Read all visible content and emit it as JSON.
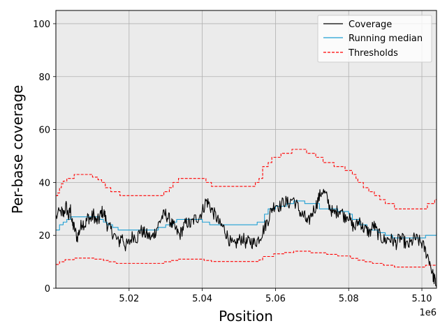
{
  "chart_data": {
    "type": "line",
    "xlabel": "Position",
    "ylabel": "Per-base coverage",
    "x_offset_label": "1e6",
    "xlim": [
      5.0,
      5.104
    ],
    "ylim": [
      0,
      105
    ],
    "x_ticks": [
      5.02,
      5.04,
      5.06,
      5.08,
      5.1
    ],
    "x_tick_labels": [
      "5.02",
      "5.04",
      "5.06",
      "5.08",
      "5.10"
    ],
    "y_ticks": [
      0,
      20,
      40,
      60,
      80,
      100
    ],
    "y_tick_labels": [
      "0",
      "20",
      "40",
      "60",
      "80",
      "100"
    ],
    "grid": true,
    "legend_position": "top-right",
    "colors": {
      "background": "#ebebeb",
      "grid": "#b0b0b0",
      "coverage": "#000000",
      "median": "#1f9fd4",
      "thresholds": "#ff0000"
    },
    "series": [
      {
        "name": "Coverage",
        "style": "solid",
        "color": "#000000",
        "points": [
          [
            5.0,
            27
          ],
          [
            5.0015,
            29
          ],
          [
            5.002,
            28
          ],
          [
            5.0028,
            31
          ],
          [
            5.0035,
            27
          ],
          [
            5.004,
            30
          ],
          [
            5.0045,
            24
          ],
          [
            5.005,
            23
          ],
          [
            5.0058,
            19
          ],
          [
            5.0065,
            22
          ],
          [
            5.0072,
            25
          ],
          [
            5.008,
            24
          ],
          [
            5.0088,
            27
          ],
          [
            5.0095,
            26
          ],
          [
            5.0103,
            28
          ],
          [
            5.011,
            25
          ],
          [
            5.0118,
            26
          ],
          [
            5.0125,
            29
          ],
          [
            5.0133,
            28
          ],
          [
            5.014,
            24
          ],
          [
            5.015,
            22
          ],
          [
            5.016,
            20
          ],
          [
            5.0172,
            17
          ],
          [
            5.018,
            20
          ],
          [
            5.019,
            16
          ],
          [
            5.02,
            17
          ],
          [
            5.021,
            20
          ],
          [
            5.0222,
            19
          ],
          [
            5.023,
            22
          ],
          [
            5.024,
            21
          ],
          [
            5.025,
            20
          ],
          [
            5.0262,
            19
          ],
          [
            5.027,
            21
          ],
          [
            5.028,
            24
          ],
          [
            5.029,
            27
          ],
          [
            5.03,
            28
          ],
          [
            5.031,
            26
          ],
          [
            5.0318,
            24
          ],
          [
            5.0328,
            22
          ],
          [
            5.0338,
            20
          ],
          [
            5.0348,
            23
          ],
          [
            5.0358,
            25
          ],
          [
            5.0368,
            24
          ],
          [
            5.0378,
            26
          ],
          [
            5.039,
            27
          ],
          [
            5.04,
            29
          ],
          [
            5.041,
            33
          ],
          [
            5.0418,
            32
          ],
          [
            5.0428,
            29
          ],
          [
            5.0438,
            27
          ],
          [
            5.0448,
            24
          ],
          [
            5.0458,
            23
          ],
          [
            5.0468,
            20
          ],
          [
            5.0478,
            17
          ],
          [
            5.0488,
            16
          ],
          [
            5.0498,
            18
          ],
          [
            5.051,
            19
          ],
          [
            5.052,
            17
          ],
          [
            5.053,
            18
          ],
          [
            5.054,
            17
          ],
          [
            5.055,
            18
          ],
          [
            5.056,
            20
          ],
          [
            5.057,
            23
          ],
          [
            5.058,
            26
          ],
          [
            5.059,
            30
          ],
          [
            5.06,
            32
          ],
          [
            5.0612,
            31
          ],
          [
            5.0625,
            33
          ],
          [
            5.0635,
            32
          ],
          [
            5.0648,
            34
          ],
          [
            5.066,
            31
          ],
          [
            5.067,
            28
          ],
          [
            5.068,
            27
          ],
          [
            5.0688,
            24
          ],
          [
            5.0698,
            28
          ],
          [
            5.071,
            31
          ],
          [
            5.0718,
            34
          ],
          [
            5.0728,
            37
          ],
          [
            5.0738,
            35
          ],
          [
            5.0748,
            31
          ],
          [
            5.0758,
            28
          ],
          [
            5.0768,
            29
          ],
          [
            5.0778,
            30
          ],
          [
            5.0788,
            27
          ],
          [
            5.0798,
            28
          ],
          [
            5.0808,
            24
          ],
          [
            5.0818,
            23
          ],
          [
            5.083,
            26
          ],
          [
            5.0838,
            23
          ],
          [
            5.0848,
            22
          ],
          [
            5.0858,
            21
          ],
          [
            5.0868,
            24
          ],
          [
            5.0878,
            21
          ],
          [
            5.089,
            19
          ],
          [
            5.09,
            18
          ],
          [
            5.091,
            19
          ],
          [
            5.092,
            18
          ],
          [
            5.093,
            17
          ],
          [
            5.094,
            19
          ],
          [
            5.095,
            18
          ],
          [
            5.096,
            16
          ],
          [
            5.097,
            17
          ],
          [
            5.098,
            19
          ],
          [
            5.099,
            18
          ],
          [
            5.1,
            17
          ],
          [
            5.101,
            14
          ],
          [
            5.102,
            11
          ],
          [
            5.103,
            5
          ],
          [
            5.1035,
            3
          ],
          [
            5.104,
            1
          ]
        ]
      },
      {
        "name": "Running median",
        "style": "step",
        "color": "#1f9fd4",
        "points": [
          [
            5.0,
            22
          ],
          [
            5.001,
            24
          ],
          [
            5.002,
            25
          ],
          [
            5.003,
            26
          ],
          [
            5.004,
            27
          ],
          [
            5.012,
            26
          ],
          [
            5.013,
            25
          ],
          [
            5.014,
            24
          ],
          [
            5.0155,
            23
          ],
          [
            5.017,
            22
          ],
          [
            5.028,
            23
          ],
          [
            5.03,
            24
          ],
          [
            5.032,
            25
          ],
          [
            5.033,
            26
          ],
          [
            5.04,
            25
          ],
          [
            5.042,
            24
          ],
          [
            5.052,
            24
          ],
          [
            5.055,
            25
          ],
          [
            5.057,
            28
          ],
          [
            5.058,
            30
          ],
          [
            5.06,
            31
          ],
          [
            5.063,
            32
          ],
          [
            5.065,
            33
          ],
          [
            5.068,
            32
          ],
          [
            5.072,
            30
          ],
          [
            5.077,
            29
          ],
          [
            5.08,
            28
          ],
          [
            5.081,
            26
          ],
          [
            5.083,
            24
          ],
          [
            5.085,
            22
          ],
          [
            5.088,
            21
          ],
          [
            5.09,
            20
          ],
          [
            5.092,
            19
          ],
          [
            5.1,
            19
          ],
          [
            5.101,
            20
          ],
          [
            5.104,
            21
          ]
        ]
      },
      {
        "name": "Thresholds",
        "style": "dashed-step",
        "color": "#ff0000",
        "points": [
          [
            5.0,
            35
          ],
          [
            5.0005,
            36
          ],
          [
            5.001,
            38
          ],
          [
            5.0015,
            39.5
          ],
          [
            5.002,
            40.5
          ],
          [
            5.003,
            41.5
          ],
          [
            5.005,
            43
          ],
          [
            5.01,
            42
          ],
          [
            5.0115,
            41
          ],
          [
            5.0125,
            40
          ],
          [
            5.0135,
            38
          ],
          [
            5.015,
            36.5
          ],
          [
            5.0175,
            35
          ],
          [
            5.0295,
            36.5
          ],
          [
            5.031,
            38
          ],
          [
            5.032,
            40
          ],
          [
            5.0335,
            41.5
          ],
          [
            5.041,
            40
          ],
          [
            5.0425,
            38.5
          ],
          [
            5.0545,
            40
          ],
          [
            5.0555,
            41.5
          ],
          [
            5.0565,
            46
          ],
          [
            5.058,
            47.5
          ],
          [
            5.059,
            49.5
          ],
          [
            5.0615,
            51
          ],
          [
            5.0645,
            52.5
          ],
          [
            5.0685,
            51
          ],
          [
            5.071,
            49.5
          ],
          [
            5.073,
            47.5
          ],
          [
            5.076,
            46
          ],
          [
            5.079,
            44.5
          ],
          [
            5.081,
            43
          ],
          [
            5.082,
            41.5
          ],
          [
            5.0825,
            40
          ],
          [
            5.084,
            38
          ],
          [
            5.0855,
            36.5
          ],
          [
            5.087,
            35
          ],
          [
            5.0885,
            33.5
          ],
          [
            5.09,
            32
          ],
          [
            5.0925,
            30
          ],
          [
            5.1015,
            32
          ],
          [
            5.1035,
            33.5
          ]
        ]
      },
      {
        "name": "Thresholds",
        "style": "dashed-step",
        "color": "#ff0000",
        "points": [
          [
            5.0,
            9
          ],
          [
            5.001,
            10
          ],
          [
            5.0025,
            10.8
          ],
          [
            5.005,
            11.4
          ],
          [
            5.0105,
            11
          ],
          [
            5.013,
            10.5
          ],
          [
            5.0145,
            10
          ],
          [
            5.0165,
            9.4
          ],
          [
            5.0295,
            10
          ],
          [
            5.0315,
            10.5
          ],
          [
            5.0335,
            11
          ],
          [
            5.0405,
            10.5
          ],
          [
            5.0425,
            10.1
          ],
          [
            5.0555,
            10.7
          ],
          [
            5.0565,
            12
          ],
          [
            5.0595,
            13
          ],
          [
            5.0625,
            13.5
          ],
          [
            5.065,
            14
          ],
          [
            5.0695,
            13.4
          ],
          [
            5.074,
            12.8
          ],
          [
            5.077,
            12.2
          ],
          [
            5.0805,
            11.3
          ],
          [
            5.0825,
            10.6
          ],
          [
            5.0845,
            10
          ],
          [
            5.0865,
            9.4
          ],
          [
            5.0895,
            8.7
          ],
          [
            5.0925,
            8
          ],
          [
            5.101,
            8.7
          ],
          [
            5.104,
            9
          ]
        ]
      }
    ],
    "legend": [
      {
        "label": "Coverage",
        "style": "solid",
        "color": "#000000"
      },
      {
        "label": "Running median",
        "style": "solid",
        "color": "#1f9fd4"
      },
      {
        "label": "Thresholds",
        "style": "dashed",
        "color": "#ff0000"
      }
    ]
  }
}
